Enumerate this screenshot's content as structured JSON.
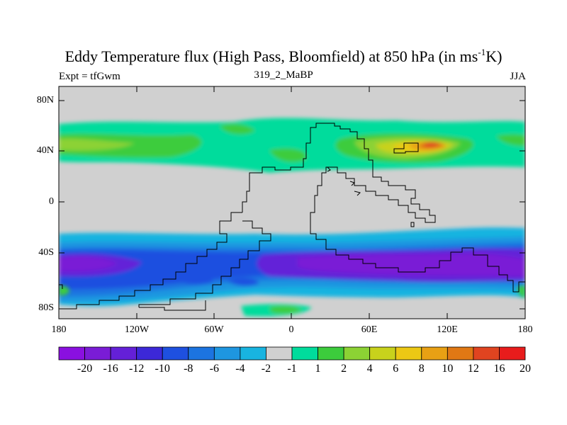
{
  "title_main": "Eddy Temperature flux (High Pass, Bloomfield) at 850 hPa (in ms",
  "title_sup": "-1",
  "title_end": "K)",
  "subtitle_left": "Expt = tfGwm",
  "subtitle_center": "319_2_MaBP",
  "subtitle_right": "JJA",
  "y_ticks": [
    "80N",
    "40N",
    "0",
    "40S",
    "80S"
  ],
  "x_ticks": [
    "180",
    "120W",
    "60W",
    "0",
    "60E",
    "120E",
    "180"
  ],
  "colorbar": {
    "colors": [
      "#8a10e0",
      "#7a1cd6",
      "#6420d8",
      "#3c28d8",
      "#1e50e0",
      "#1c74e0",
      "#1e96e0",
      "#18b4e0",
      "#d0d0d0",
      "#00dc9c",
      "#3ccc3c",
      "#8cd234",
      "#c8d21c",
      "#ecc814",
      "#e8a014",
      "#e07814",
      "#e04420",
      "#e81c1c"
    ],
    "labels": [
      "-20",
      "-16",
      "-12",
      "-10",
      "-8",
      "-6",
      "-4",
      "-2",
      "-1",
      "1",
      "2",
      "4",
      "6",
      "8",
      "10",
      "12",
      "16",
      "20"
    ]
  }
}
